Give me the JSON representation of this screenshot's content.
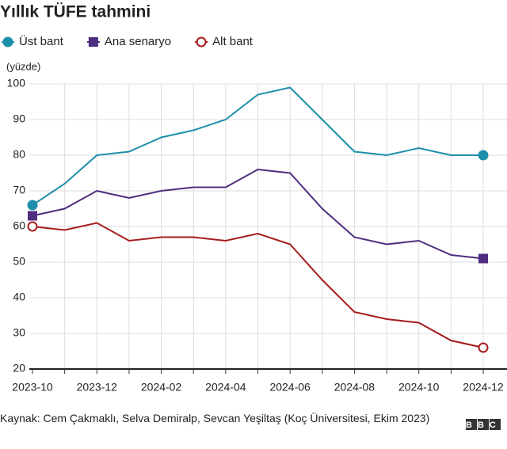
{
  "chart_data": {
    "type": "line",
    "title": "Yıllık TÜFE tahmini",
    "y_label": "(yüzde)",
    "categories": [
      "2023-10",
      null,
      "2023-12",
      null,
      "2024-02",
      null,
      "2024-04",
      null,
      "2024-06",
      null,
      "2024-08",
      null,
      "2024-10",
      null,
      "2024-12"
    ],
    "series": [
      {
        "name": "Üst bant",
        "color": "#1d8fab",
        "marker": "circle",
        "values": [
          66,
          72,
          80,
          81,
          85,
          87,
          90,
          97,
          99,
          90,
          81,
          80,
          82,
          80,
          80
        ]
      },
      {
        "name": "Ana senaryo",
        "color": "#4f2d7f",
        "marker": "square",
        "values": [
          63,
          65,
          70,
          68,
          70,
          71,
          71,
          76,
          75,
          65,
          57,
          55,
          56,
          52,
          51
        ]
      },
      {
        "name": "Alt bant",
        "color": "#a51c1c",
        "marker": "open-circle",
        "values": [
          60,
          59,
          61,
          56,
          57,
          57,
          56,
          58,
          55,
          45,
          36,
          34,
          33,
          28,
          26
        ]
      }
    ],
    "ylim": [
      20,
      100
    ],
    "yticks": [
      20,
      30,
      40,
      50,
      60,
      70,
      80,
      90,
      100
    ],
    "grid": true,
    "source": "Kaynak: Cem Çakmaklı, Selva Demiralp, Sevcan Yeşiltaş (Koç Üniversitesi, Ekim 2023)",
    "logo": "BBC"
  }
}
